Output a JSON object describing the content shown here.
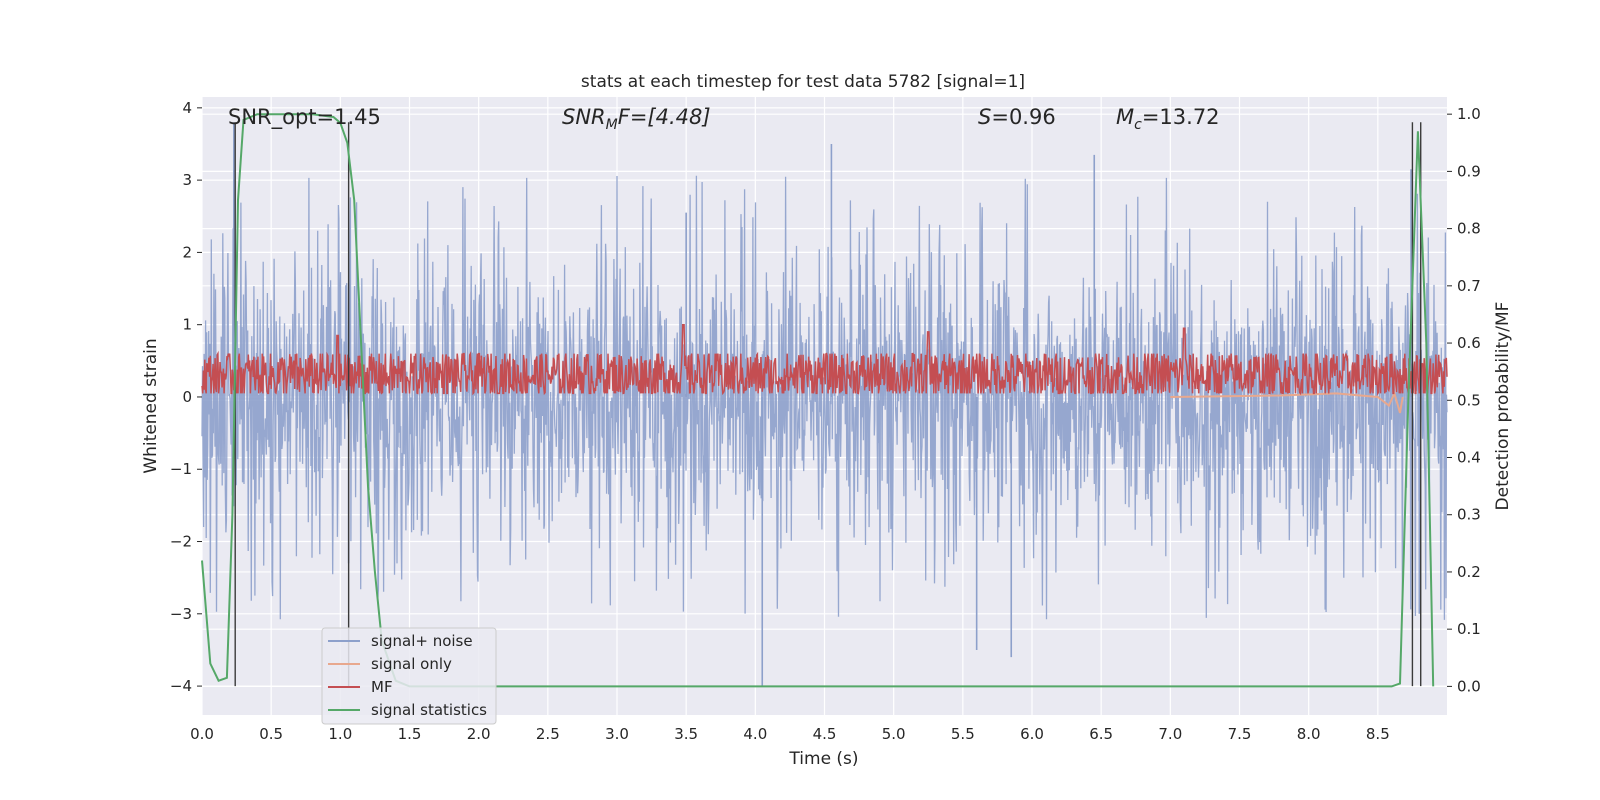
{
  "chart_data": {
    "type": "line",
    "title": "stats at each timestep for test data 5782 [signal=1]",
    "xlabel": "Time (s)",
    "ylabel": "Whitened strain",
    "ylabel_right": "Detection probability/MF",
    "xlim": [
      0.0,
      9.0
    ],
    "ylim": [
      -4.4,
      4.15
    ],
    "ylim_right": [
      -0.05,
      1.03
    ],
    "x_ticks": [
      "0.0",
      "0.5",
      "1.0",
      "1.5",
      "2.0",
      "2.5",
      "3.0",
      "3.5",
      "4.0",
      "4.5",
      "5.0",
      "5.5",
      "6.0",
      "6.5",
      "7.0",
      "7.5",
      "8.0",
      "8.5"
    ],
    "y_ticks": [
      "4",
      "3",
      "2",
      "1",
      "0",
      "−1",
      "−2",
      "−3",
      "−4"
    ],
    "y_right_ticks": [
      "1.0",
      "0.9",
      "0.8",
      "0.7",
      "0.6",
      "0.5",
      "0.4",
      "0.3",
      "0.2",
      "0.1",
      "0.0"
    ],
    "grid": true,
    "legend_placement": "lower-left",
    "annotations": {
      "snr_opt": "SNR_opt=1.45",
      "snr_mf_main": "SNR",
      "snr_mf_sub": "M",
      "snr_mf_rest": "F=[4.48]",
      "s_italic": "S",
      "s_rest": "=0.96",
      "mc_main": "M",
      "mc_sub": "c",
      "mc_rest": "=13.72"
    },
    "vertical_lines_x": [
      0.24,
      1.06,
      8.75,
      8.81
    ],
    "vertical_lines_y_range": [
      -4.0,
      3.8
    ],
    "series": [
      {
        "name": "signal+ noise",
        "color": "#8da0cb",
        "axis": "left",
        "envelope_note": "whitened strain noise, roughly between -2.5 and +2.5 with spikes to about ±3.5",
        "typical_range": [
          -2.4,
          2.4
        ],
        "spikes": [
          {
            "x": 0.23,
            "y": 3.8
          },
          {
            "x": 1.06,
            "y": -2.3
          },
          {
            "x": 3.5,
            "y": 2.55
          },
          {
            "x": 4.05,
            "y": -4.0
          },
          {
            "x": 4.55,
            "y": 3.5
          },
          {
            "x": 6.45,
            "y": 3.35
          },
          {
            "x": 5.6,
            "y": -3.5
          },
          {
            "x": 5.85,
            "y": -3.6
          },
          {
            "x": 8.74,
            "y": 3.15
          },
          {
            "x": 8.8,
            "y": -3.0
          }
        ]
      },
      {
        "name": "signal only",
        "color": "#e8a88e",
        "axis": "left",
        "points": [
          [
            7.0,
            0.0
          ],
          [
            7.8,
            0.02
          ],
          [
            8.2,
            0.05
          ],
          [
            8.5,
            0.0
          ],
          [
            8.58,
            -0.12
          ],
          [
            8.62,
            0.05
          ],
          [
            8.66,
            -0.22
          ],
          [
            8.68,
            0.0
          ]
        ]
      },
      {
        "name": "MF",
        "color": "#c44e52",
        "axis": "left",
        "band": [
          0.05,
          0.6
        ],
        "mean": 0.3,
        "peaks": [
          {
            "x": 0.98,
            "y": 0.85
          },
          {
            "x": 3.48,
            "y": 1.0
          },
          {
            "x": 5.25,
            "y": 0.9
          },
          {
            "x": 7.1,
            "y": 0.95
          }
        ]
      },
      {
        "name": "signal statistics",
        "color": "#55a868",
        "axis": "right",
        "points": [
          [
            0.0,
            0.22
          ],
          [
            0.06,
            0.04
          ],
          [
            0.12,
            0.01
          ],
          [
            0.18,
            0.015
          ],
          [
            0.22,
            0.3
          ],
          [
            0.26,
            0.85
          ],
          [
            0.3,
            0.99
          ],
          [
            0.4,
            1.0
          ],
          [
            0.8,
            1.0
          ],
          [
            0.95,
            0.995
          ],
          [
            1.0,
            0.985
          ],
          [
            1.05,
            0.95
          ],
          [
            1.1,
            0.85
          ],
          [
            1.15,
            0.6
          ],
          [
            1.2,
            0.35
          ],
          [
            1.25,
            0.2
          ],
          [
            1.3,
            0.08
          ],
          [
            1.4,
            0.01
          ],
          [
            1.5,
            0.0
          ],
          [
            8.6,
            0.0
          ],
          [
            8.66,
            0.005
          ],
          [
            8.72,
            0.5
          ],
          [
            8.79,
            0.97
          ],
          [
            8.85,
            0.6
          ],
          [
            8.9,
            0.0
          ]
        ]
      }
    ]
  }
}
